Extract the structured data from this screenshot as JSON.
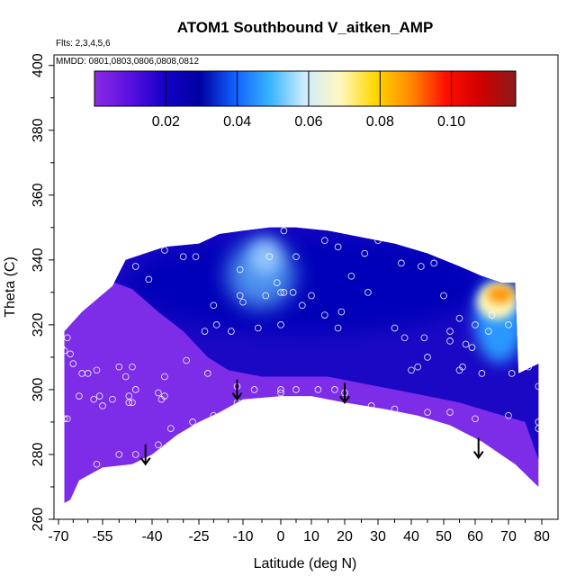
{
  "chart_data": {
    "type": "heatmap",
    "title": "ATOM1 Southbound V_aitken_AMP",
    "subtitle_flights": "Flts: 2,3,4,5,6",
    "subtitle_dates": "MMDD: 0801,0803,0806,0808,0812",
    "xlabel": "Latitude (deg N)",
    "ylabel": "Theta (C)",
    "xlim": [
      -70,
      82
    ],
    "ylim": [
      260,
      403
    ],
    "x_ticks": [
      -70,
      -55,
      -40,
      -25,
      -10,
      0,
      10,
      20,
      30,
      40,
      50,
      60,
      70,
      80
    ],
    "x_tick_labels": [
      "-70",
      "-55",
      "-40",
      "-25",
      "-10",
      "0",
      "10",
      "20",
      "30",
      "40",
      "50",
      "60",
      "70",
      "80"
    ],
    "y_ticks": [
      260,
      280,
      300,
      320,
      340,
      360,
      380,
      400
    ],
    "y_tick_labels": [
      "260",
      "280",
      "300",
      "320",
      "340",
      "360",
      "380",
      "400"
    ],
    "colorbar": {
      "range": [
        0,
        0.118
      ],
      "tick_values": [
        0.02,
        0.04,
        0.06,
        0.08,
        0.1
      ],
      "tick_labels": [
        "0.02",
        "0.04",
        "0.06",
        "0.08",
        "0.10"
      ],
      "colors": [
        "#8a2be2",
        "#5a10e0",
        "#1400c8",
        "#0000a0",
        "#1060ff",
        "#39b4ff",
        "#d0ecff",
        "#fff8c0",
        "#ffd800",
        "#ff8a00",
        "#ff1000",
        "#d00000",
        "#8a1a1a"
      ]
    },
    "field_regions": [
      {
        "name": "background-low",
        "value": 0.005
      },
      {
        "name": "mid-layer-band",
        "value": 0.02
      },
      {
        "name": "upper-blue",
        "value": 0.025
      },
      {
        "name": "tropical-plume",
        "value": 0.045
      },
      {
        "name": "arctic-plume",
        "value": 0.05
      },
      {
        "name": "arctic-hotspot",
        "value": 0.09
      }
    ],
    "tropopause_arrows": [
      {
        "lat": -42,
        "theta": 277
      },
      {
        "lat": -12,
        "theta": 297
      },
      {
        "lat": 20,
        "theta": 296
      },
      {
        "lat": 61,
        "theta": 279
      }
    ],
    "sample_points": [
      [
        -67,
        316
      ],
      [
        -69,
        313
      ],
      [
        -68,
        312
      ],
      [
        -66,
        311
      ],
      [
        -65,
        308
      ],
      [
        -62,
        305
      ],
      [
        -60,
        305
      ],
      [
        -57,
        306
      ],
      [
        -63,
        298
      ],
      [
        -58,
        297
      ],
      [
        -56,
        298
      ],
      [
        -52,
        297
      ],
      [
        -55,
        295
      ],
      [
        -50,
        307
      ],
      [
        -48,
        304
      ],
      [
        -47,
        296
      ],
      [
        -46,
        296
      ],
      [
        -47,
        298
      ],
      [
        -45,
        300
      ],
      [
        -38,
        299
      ],
      [
        -37,
        297
      ],
      [
        -36,
        304
      ],
      [
        -36,
        298
      ],
      [
        -29,
        309
      ],
      [
        -23,
        318
      ],
      [
        -22,
        305
      ],
      [
        -46,
        307
      ],
      [
        -41,
        334
      ],
      [
        -49,
        345
      ],
      [
        -45,
        338
      ],
      [
        -36,
        343
      ],
      [
        -30,
        341
      ],
      [
        -26,
        341
      ],
      [
        -19,
        320
      ],
      [
        -14,
        318
      ],
      [
        -20,
        326
      ],
      [
        -11,
        337
      ],
      [
        -11,
        329
      ],
      [
        -10,
        327
      ],
      [
        -6,
        319
      ],
      [
        -3,
        341
      ],
      [
        -4,
        329
      ],
      [
        -1,
        333
      ],
      [
        0,
        330
      ],
      [
        1,
        330
      ],
      [
        0,
        320
      ],
      [
        1,
        349
      ],
      [
        4,
        330
      ],
      [
        5,
        341
      ],
      [
        7,
        326
      ],
      [
        10,
        329
      ],
      [
        14,
        323
      ],
      [
        14,
        346
      ],
      [
        18,
        344
      ],
      [
        18,
        319
      ],
      [
        19,
        324
      ],
      [
        22,
        335
      ],
      [
        26,
        342
      ],
      [
        27,
        330
      ],
      [
        30,
        346
      ],
      [
        37,
        339
      ],
      [
        43,
        338
      ],
      [
        47,
        339
      ],
      [
        50,
        329
      ],
      [
        52,
        318
      ],
      [
        55,
        322
      ],
      [
        57,
        314
      ],
      [
        59,
        313
      ],
      [
        60,
        320
      ],
      [
        64,
        318
      ],
      [
        65,
        323
      ],
      [
        70,
        320
      ],
      [
        75,
        309
      ],
      [
        76,
        307
      ],
      [
        71,
        305
      ],
      [
        62,
        305
      ],
      [
        55,
        306
      ],
      [
        45,
        310
      ],
      [
        42,
        307
      ],
      [
        40,
        306
      ],
      [
        35,
        319
      ],
      [
        38,
        316
      ],
      [
        44,
        316
      ],
      [
        52,
        315
      ],
      [
        56,
        307
      ],
      [
        -12,
        301
      ],
      [
        -7,
        300
      ],
      [
        0,
        300
      ],
      [
        0,
        299
      ],
      [
        5,
        300
      ],
      [
        12,
        300
      ],
      [
        17,
        300
      ],
      [
        20,
        299
      ],
      [
        28,
        295
      ],
      [
        35,
        294
      ],
      [
        45,
        293
      ],
      [
        52,
        293
      ],
      [
        60,
        291
      ],
      [
        70,
        292
      ],
      [
        79,
        301
      ],
      [
        79,
        290
      ],
      [
        79,
        288
      ],
      [
        80,
        287
      ],
      [
        80,
        273
      ],
      [
        -68,
        291
      ],
      [
        -67,
        291
      ],
      [
        -57,
        277
      ],
      [
        -50,
        280
      ],
      [
        -45,
        280
      ],
      [
        -42,
        278
      ],
      [
        -38,
        283
      ],
      [
        -34,
        288
      ],
      [
        -27,
        290
      ],
      [
        -20,
        292
      ],
      [
        -12,
        296
      ]
    ]
  }
}
